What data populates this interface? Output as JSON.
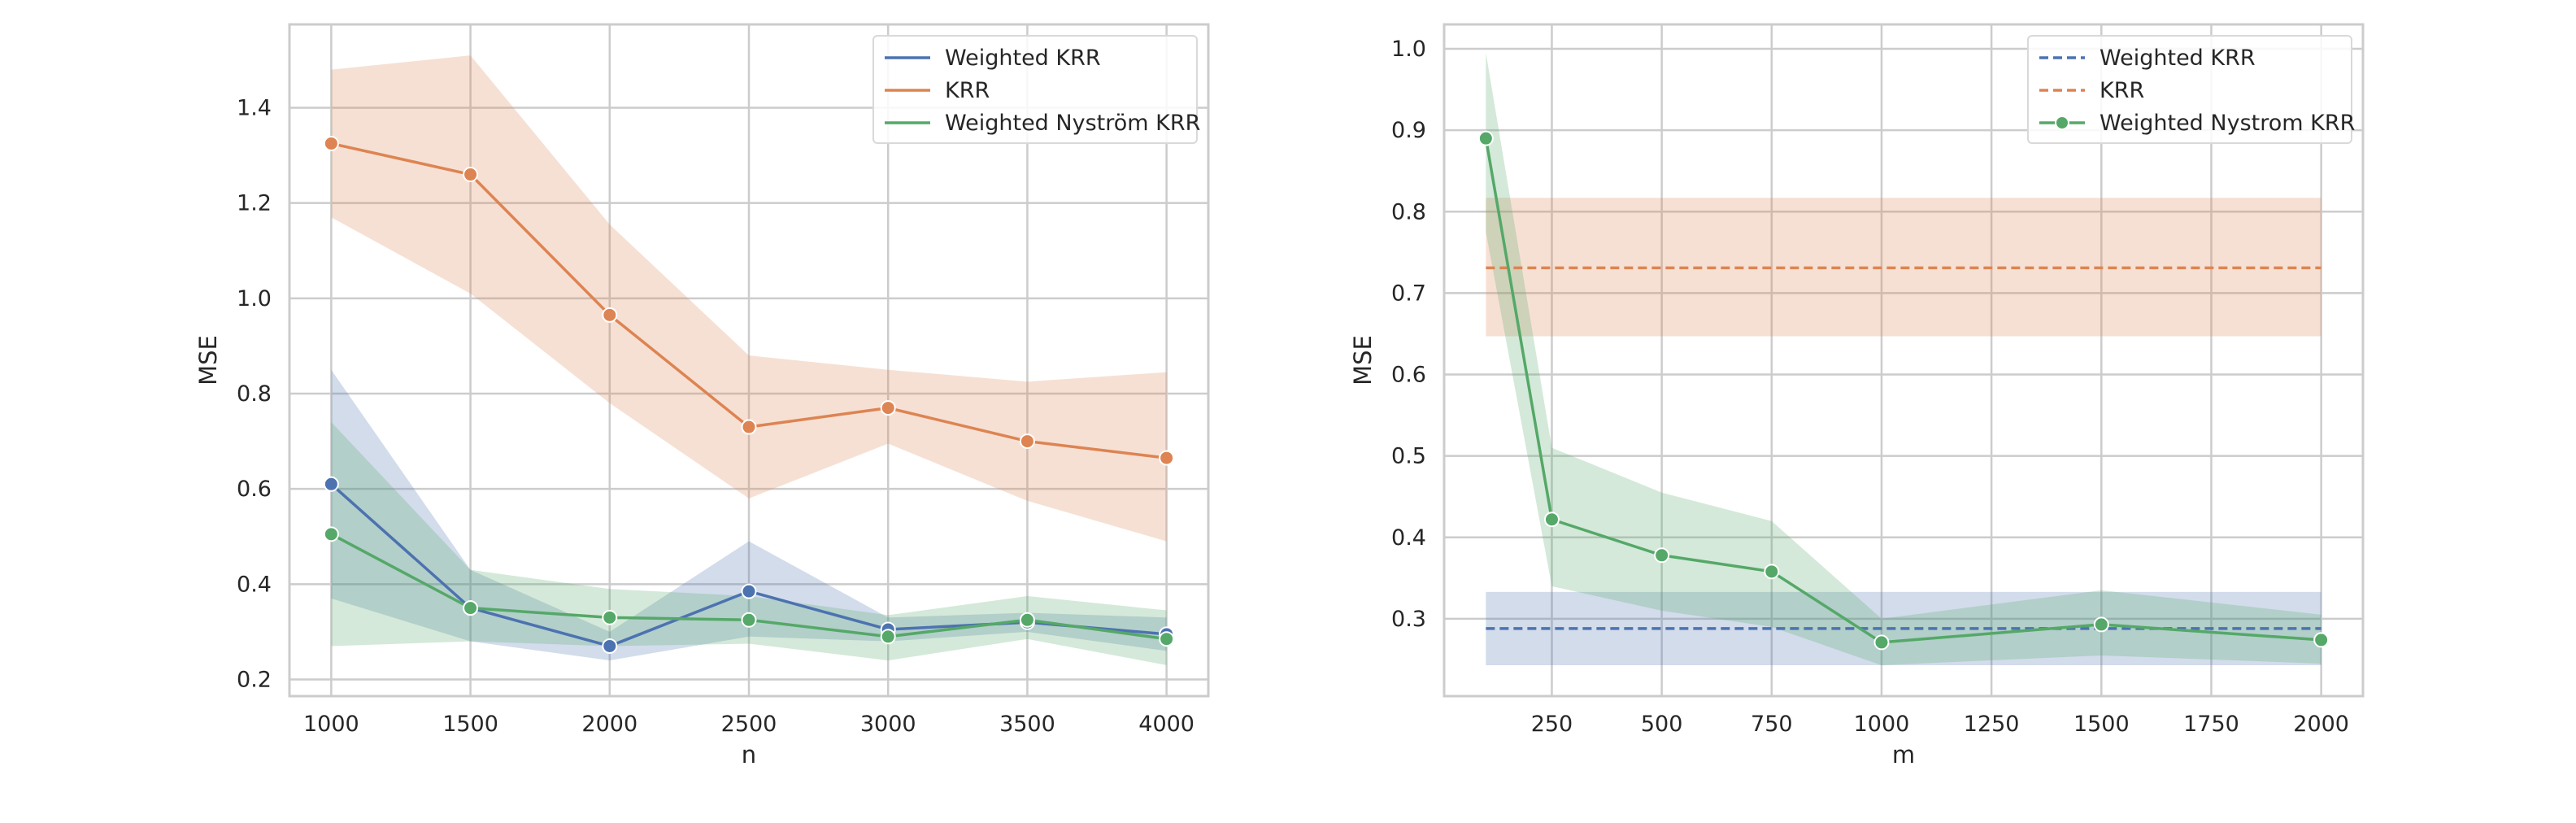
{
  "chart_data": [
    {
      "type": "line",
      "title": "",
      "xlabel": "n",
      "ylabel": "MSE",
      "xlim": [
        850,
        4150
      ],
      "ylim": [
        0.165,
        1.575
      ],
      "xticks": [
        1000,
        1500,
        2000,
        2500,
        3000,
        3500,
        4000
      ],
      "yticks": [
        0.2,
        0.4,
        0.6,
        0.8,
        1.0,
        1.2,
        1.4
      ],
      "legend_position": "top-right",
      "grid": true,
      "series": [
        {
          "name": "Weighted KRR",
          "color": "#4c72b0",
          "dashed": false,
          "marker": true,
          "x": [
            1000,
            1500,
            2000,
            2500,
            3000,
            3500,
            4000
          ],
          "y": [
            0.61,
            0.35,
            0.27,
            0.385,
            0.305,
            0.32,
            0.295
          ],
          "lower": [
            0.37,
            0.28,
            0.24,
            0.29,
            0.28,
            0.3,
            0.26
          ],
          "upper": [
            0.85,
            0.43,
            0.3,
            0.49,
            0.33,
            0.34,
            0.33
          ]
        },
        {
          "name": "KRR",
          "color": "#dd8452",
          "dashed": false,
          "marker": true,
          "x": [
            1000,
            1500,
            2000,
            2500,
            3000,
            3500,
            4000
          ],
          "y": [
            1.325,
            1.26,
            0.965,
            0.73,
            0.77,
            0.7,
            0.665
          ],
          "lower": [
            1.17,
            1.01,
            0.78,
            0.58,
            0.695,
            0.575,
            0.49
          ],
          "upper": [
            1.48,
            1.51,
            1.155,
            0.88,
            0.85,
            0.825,
            0.845
          ]
        },
        {
          "name": "Weighted Nyström KRR",
          "color": "#55a868",
          "dashed": false,
          "marker": true,
          "x": [
            1000,
            1500,
            2000,
            2500,
            3000,
            3500,
            4000
          ],
          "y": [
            0.505,
            0.35,
            0.33,
            0.325,
            0.29,
            0.325,
            0.285
          ],
          "lower": [
            0.27,
            0.28,
            0.27,
            0.275,
            0.24,
            0.285,
            0.23
          ],
          "upper": [
            0.74,
            0.43,
            0.39,
            0.375,
            0.335,
            0.375,
            0.345
          ]
        }
      ]
    },
    {
      "type": "line",
      "title": "",
      "xlabel": "m",
      "ylabel": "MSE",
      "xlim": [
        5,
        2095
      ],
      "ylim": [
        0.205,
        1.03
      ],
      "xticks": [
        250,
        500,
        750,
        1000,
        1250,
        1500,
        1750,
        2000
      ],
      "yticks": [
        0.3,
        0.4,
        0.5,
        0.6,
        0.7,
        0.8,
        0.9,
        1.0
      ],
      "legend_position": "top-right",
      "grid": true,
      "series": [
        {
          "name": "Weighted KRR",
          "color": "#4c72b0",
          "dashed": true,
          "marker": false,
          "x": [
            100,
            2000
          ],
          "y": [
            0.288,
            0.288
          ],
          "lower": [
            0.243,
            0.243
          ],
          "upper": [
            0.333,
            0.333
          ]
        },
        {
          "name": "KRR",
          "color": "#dd8452",
          "dashed": true,
          "marker": false,
          "x": [
            100,
            2000
          ],
          "y": [
            0.731,
            0.731
          ],
          "lower": [
            0.647,
            0.647
          ],
          "upper": [
            0.817,
            0.817
          ]
        },
        {
          "name": "Weighted Nystrom KRR",
          "color": "#55a868",
          "dashed": false,
          "marker": true,
          "x": [
            100,
            250,
            500,
            750,
            1000,
            1500,
            2000
          ],
          "y": [
            0.89,
            0.422,
            0.378,
            0.358,
            0.271,
            0.293,
            0.274
          ],
          "lower": [
            0.775,
            0.34,
            0.31,
            0.29,
            0.243,
            0.255,
            0.245
          ],
          "upper": [
            0.995,
            0.51,
            0.455,
            0.42,
            0.3,
            0.335,
            0.305
          ]
        }
      ]
    }
  ]
}
